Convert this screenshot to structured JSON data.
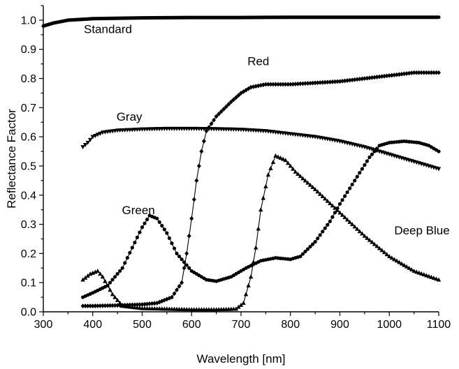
{
  "chart_data": {
    "type": "scatter",
    "title": "",
    "xlabel": "Wavelength [nm]",
    "ylabel": "Reflectance Factor",
    "xlim": [
      300,
      1100
    ],
    "ylim": [
      0.0,
      1.05
    ],
    "xticks": [
      "300",
      "400",
      "500",
      "600",
      "700",
      "800",
      "900",
      "1000",
      "1100"
    ],
    "yticks": [
      "0.0",
      "0.1",
      "0.2",
      "0.3",
      "0.4",
      "0.5",
      "0.6",
      "0.7",
      "0.8",
      "0.9",
      "1.0"
    ],
    "grid": false,
    "legend": "none",
    "series": [
      {
        "name": "Standard",
        "marker": "line",
        "label_at": [
          382,
          0.955
        ],
        "points": [
          [
            300,
            0.98
          ],
          [
            320,
            0.99
          ],
          [
            350,
            1.0
          ],
          [
            400,
            1.005
          ],
          [
            500,
            1.008
          ],
          [
            600,
            1.009
          ],
          [
            700,
            1.009
          ],
          [
            800,
            1.01
          ],
          [
            900,
            1.01
          ],
          [
            1000,
            1.01
          ],
          [
            1100,
            1.01
          ]
        ]
      },
      {
        "name": "Red",
        "marker": "diamond",
        "label_at": [
          713,
          0.845
        ],
        "points": [
          [
            380,
            0.02
          ],
          [
            400,
            0.02
          ],
          [
            450,
            0.022
          ],
          [
            500,
            0.025
          ],
          [
            530,
            0.03
          ],
          [
            560,
            0.05
          ],
          [
            580,
            0.1
          ],
          [
            590,
            0.2
          ],
          [
            600,
            0.32
          ],
          [
            610,
            0.45
          ],
          [
            620,
            0.55
          ],
          [
            630,
            0.62
          ],
          [
            650,
            0.67
          ],
          [
            680,
            0.72
          ],
          [
            700,
            0.75
          ],
          [
            720,
            0.77
          ],
          [
            750,
            0.78
          ],
          [
            800,
            0.78
          ],
          [
            850,
            0.785
          ],
          [
            900,
            0.79
          ],
          [
            950,
            0.8
          ],
          [
            1000,
            0.81
          ],
          [
            1050,
            0.82
          ],
          [
            1100,
            0.82
          ]
        ]
      },
      {
        "name": "Gray",
        "marker": "triangle-down",
        "label_at": [
          448,
          0.655
        ],
        "points": [
          [
            380,
            0.565
          ],
          [
            390,
            0.58
          ],
          [
            400,
            0.6
          ],
          [
            420,
            0.615
          ],
          [
            450,
            0.622
          ],
          [
            500,
            0.626
          ],
          [
            550,
            0.628
          ],
          [
            600,
            0.628
          ],
          [
            650,
            0.627
          ],
          [
            700,
            0.625
          ],
          [
            750,
            0.62
          ],
          [
            800,
            0.61
          ],
          [
            850,
            0.6
          ],
          [
            900,
            0.585
          ],
          [
            950,
            0.565
          ],
          [
            1000,
            0.54
          ],
          [
            1050,
            0.515
          ],
          [
            1100,
            0.49
          ]
        ]
      },
      {
        "name": "Green",
        "marker": "circle",
        "label_at": [
          459,
          0.335
        ],
        "points": [
          [
            380,
            0.05
          ],
          [
            400,
            0.065
          ],
          [
            430,
            0.09
          ],
          [
            460,
            0.15
          ],
          [
            480,
            0.22
          ],
          [
            500,
            0.29
          ],
          [
            515,
            0.33
          ],
          [
            530,
            0.32
          ],
          [
            550,
            0.27
          ],
          [
            570,
            0.2
          ],
          [
            600,
            0.14
          ],
          [
            630,
            0.11
          ],
          [
            650,
            0.105
          ],
          [
            680,
            0.12
          ],
          [
            710,
            0.15
          ],
          [
            740,
            0.175
          ],
          [
            770,
            0.185
          ],
          [
            800,
            0.18
          ],
          [
            820,
            0.19
          ],
          [
            850,
            0.24
          ],
          [
            880,
            0.31
          ],
          [
            900,
            0.37
          ],
          [
            930,
            0.45
          ],
          [
            960,
            0.53
          ],
          [
            980,
            0.57
          ],
          [
            1000,
            0.58
          ],
          [
            1030,
            0.585
          ],
          [
            1060,
            0.58
          ],
          [
            1080,
            0.57
          ],
          [
            1100,
            0.55
          ]
        ]
      },
      {
        "name": "Deep Blue",
        "marker": "triangle-up",
        "label_at": [
          1010,
          0.265
        ],
        "points": [
          [
            380,
            0.11
          ],
          [
            395,
            0.13
          ],
          [
            410,
            0.14
          ],
          [
            420,
            0.12
          ],
          [
            440,
            0.06
          ],
          [
            460,
            0.02
          ],
          [
            500,
            0.012
          ],
          [
            550,
            0.01
          ],
          [
            600,
            0.008
          ],
          [
            650,
            0.008
          ],
          [
            690,
            0.01
          ],
          [
            705,
            0.03
          ],
          [
            720,
            0.12
          ],
          [
            730,
            0.22
          ],
          [
            740,
            0.35
          ],
          [
            755,
            0.47
          ],
          [
            770,
            0.535
          ],
          [
            790,
            0.52
          ],
          [
            810,
            0.48
          ],
          [
            850,
            0.42
          ],
          [
            900,
            0.34
          ],
          [
            950,
            0.26
          ],
          [
            1000,
            0.19
          ],
          [
            1050,
            0.14
          ],
          [
            1100,
            0.11
          ]
        ]
      }
    ]
  }
}
